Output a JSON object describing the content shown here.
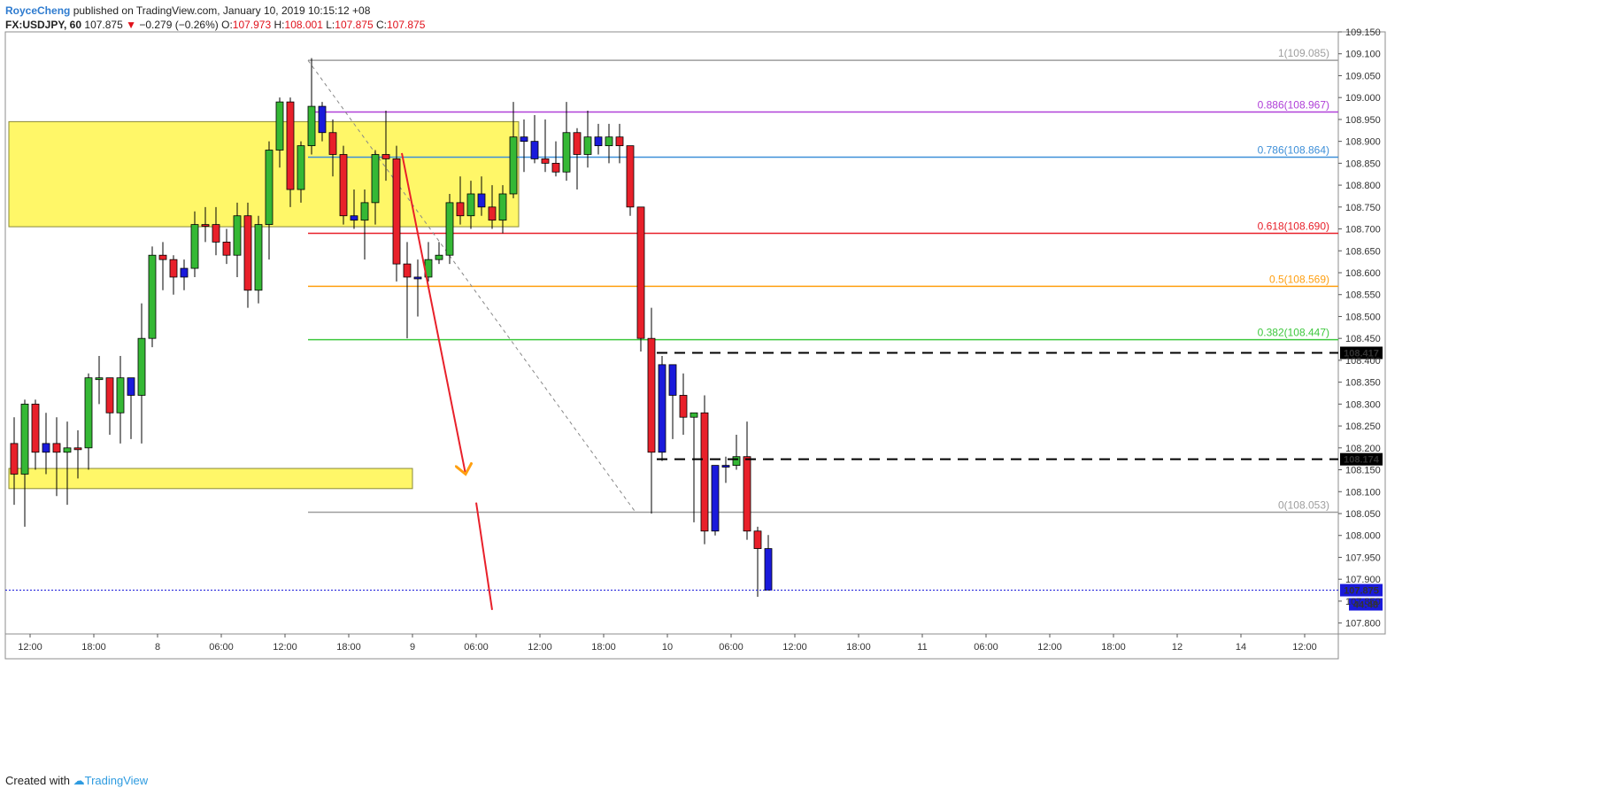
{
  "header": {
    "author": "RoyceCheng",
    "published_text": "published on TradingView.com, January 10, 2019 10:15:12 +08",
    "symbol": "FX:USDJPY, 60",
    "last_price": "107.875",
    "change": "−0.279 (−0.26%)",
    "o_label": "O:",
    "o_value": "107.973",
    "h_label": "H:",
    "h_value": "108.001",
    "l_label": "L:",
    "l_value": "107.875",
    "c_label": "C:",
    "c_value": "107.875"
  },
  "footer": {
    "created_with": "Created with",
    "brand": "TradingView"
  },
  "chart_data": {
    "type": "candlestick",
    "y_range": [
      107.775,
      109.15
    ],
    "y_ticks": [
      "109.150",
      "109.100",
      "109.050",
      "109.000",
      "108.950",
      "108.900",
      "108.850",
      "108.800",
      "108.750",
      "108.700",
      "108.650",
      "108.600",
      "108.550",
      "108.500",
      "108.450",
      "108.400",
      "108.350",
      "108.300",
      "108.250",
      "108.200",
      "108.150",
      "108.100",
      "108.050",
      "108.000",
      "107.950",
      "107.900",
      "107.850",
      "107.800"
    ],
    "x_ticks": [
      {
        "bar": 1.5,
        "label": "12:00"
      },
      {
        "bar": 7.5,
        "label": "18:00"
      },
      {
        "bar": 13.5,
        "label": "8"
      },
      {
        "bar": 19.5,
        "label": "06:00"
      },
      {
        "bar": 25.5,
        "label": "12:00"
      },
      {
        "bar": 31.5,
        "label": "18:00"
      },
      {
        "bar": 37.5,
        "label": "9"
      },
      {
        "bar": 43.5,
        "label": "06:00"
      },
      {
        "bar": 49.5,
        "label": "12:00"
      },
      {
        "bar": 55.5,
        "label": "18:00"
      },
      {
        "bar": 61.5,
        "label": "10"
      },
      {
        "bar": 67.5,
        "label": "06:00"
      },
      {
        "bar": 73.5,
        "label": "12:00"
      },
      {
        "bar": 79.5,
        "label": "18:00"
      },
      {
        "bar": 85.5,
        "label": "11"
      },
      {
        "bar": 91.5,
        "label": "06:00"
      },
      {
        "bar": 97.5,
        "label": "12:00"
      },
      {
        "bar": 103.5,
        "label": "18:00"
      },
      {
        "bar": 109.5,
        "label": "12"
      },
      {
        "bar": 115.5,
        "label": "14"
      },
      {
        "bar": 121.5,
        "label": "12:00"
      }
    ],
    "candles": [
      {
        "o": 108.14,
        "h": 108.27,
        "l": 108.07,
        "c": 108.21,
        "color": "red"
      },
      {
        "o": 108.14,
        "h": 108.31,
        "l": 108.02,
        "c": 108.3,
        "color": "green"
      },
      {
        "o": 108.3,
        "h": 108.31,
        "l": 108.15,
        "c": 108.19,
        "color": "red"
      },
      {
        "o": 108.19,
        "h": 108.28,
        "l": 108.14,
        "c": 108.21,
        "color": "blue"
      },
      {
        "o": 108.21,
        "h": 108.27,
        "l": 108.09,
        "c": 108.19,
        "color": "red"
      },
      {
        "o": 108.19,
        "h": 108.26,
        "l": 108.07,
        "c": 108.2,
        "color": "green"
      },
      {
        "o": 108.2,
        "h": 108.24,
        "l": 108.13,
        "c": 108.2,
        "color": "red"
      },
      {
        "o": 108.2,
        "h": 108.37,
        "l": 108.15,
        "c": 108.36,
        "color": "green"
      },
      {
        "o": 108.36,
        "h": 108.41,
        "l": 108.3,
        "c": 108.36,
        "color": "green"
      },
      {
        "o": 108.36,
        "h": 108.36,
        "l": 108.23,
        "c": 108.28,
        "color": "red"
      },
      {
        "o": 108.28,
        "h": 108.41,
        "l": 108.21,
        "c": 108.36,
        "color": "green"
      },
      {
        "o": 108.36,
        "h": 108.36,
        "l": 108.22,
        "c": 108.32,
        "color": "blue"
      },
      {
        "o": 108.32,
        "h": 108.53,
        "l": 108.21,
        "c": 108.45,
        "color": "green"
      },
      {
        "o": 108.45,
        "h": 108.66,
        "l": 108.43,
        "c": 108.64,
        "color": "green"
      },
      {
        "o": 108.64,
        "h": 108.67,
        "l": 108.56,
        "c": 108.63,
        "color": "red"
      },
      {
        "o": 108.63,
        "h": 108.64,
        "l": 108.55,
        "c": 108.59,
        "color": "red"
      },
      {
        "o": 108.59,
        "h": 108.63,
        "l": 108.56,
        "c": 108.61,
        "color": "blue"
      },
      {
        "o": 108.61,
        "h": 108.74,
        "l": 108.59,
        "c": 108.71,
        "color": "green"
      },
      {
        "o": 108.71,
        "h": 108.75,
        "l": 108.67,
        "c": 108.71,
        "color": "red"
      },
      {
        "o": 108.71,
        "h": 108.75,
        "l": 108.64,
        "c": 108.67,
        "color": "red"
      },
      {
        "o": 108.67,
        "h": 108.7,
        "l": 108.62,
        "c": 108.64,
        "color": "red"
      },
      {
        "o": 108.64,
        "h": 108.76,
        "l": 108.59,
        "c": 108.73,
        "color": "green"
      },
      {
        "o": 108.73,
        "h": 108.76,
        "l": 108.52,
        "c": 108.56,
        "color": "red"
      },
      {
        "o": 108.56,
        "h": 108.73,
        "l": 108.53,
        "c": 108.71,
        "color": "green"
      },
      {
        "o": 108.71,
        "h": 108.9,
        "l": 108.63,
        "c": 108.88,
        "color": "green"
      },
      {
        "o": 108.88,
        "h": 109.0,
        "l": 108.84,
        "c": 108.99,
        "color": "green"
      },
      {
        "o": 108.99,
        "h": 109.0,
        "l": 108.75,
        "c": 108.79,
        "color": "red"
      },
      {
        "o": 108.79,
        "h": 108.9,
        "l": 108.76,
        "c": 108.89,
        "color": "green"
      },
      {
        "o": 108.89,
        "h": 109.09,
        "l": 108.87,
        "c": 108.98,
        "color": "green"
      },
      {
        "o": 108.98,
        "h": 108.99,
        "l": 108.9,
        "c": 108.92,
        "color": "blue"
      },
      {
        "o": 108.92,
        "h": 108.95,
        "l": 108.82,
        "c": 108.87,
        "color": "red"
      },
      {
        "o": 108.87,
        "h": 108.89,
        "l": 108.71,
        "c": 108.73,
        "color": "red"
      },
      {
        "o": 108.73,
        "h": 108.79,
        "l": 108.7,
        "c": 108.72,
        "color": "blue"
      },
      {
        "o": 108.72,
        "h": 108.79,
        "l": 108.63,
        "c": 108.76,
        "color": "green"
      },
      {
        "o": 108.76,
        "h": 108.88,
        "l": 108.71,
        "c": 108.87,
        "color": "green"
      },
      {
        "o": 108.87,
        "h": 108.97,
        "l": 108.81,
        "c": 108.86,
        "color": "red"
      },
      {
        "o": 108.86,
        "h": 108.89,
        "l": 108.58,
        "c": 108.62,
        "color": "red"
      },
      {
        "o": 108.62,
        "h": 108.67,
        "l": 108.45,
        "c": 108.59,
        "color": "red"
      },
      {
        "o": 108.59,
        "h": 108.63,
        "l": 108.5,
        "c": 108.59,
        "color": "blue"
      },
      {
        "o": 108.59,
        "h": 108.67,
        "l": 108.58,
        "c": 108.63,
        "color": "green"
      },
      {
        "o": 108.63,
        "h": 108.67,
        "l": 108.62,
        "c": 108.64,
        "color": "green"
      },
      {
        "o": 108.64,
        "h": 108.78,
        "l": 108.62,
        "c": 108.76,
        "color": "green"
      },
      {
        "o": 108.76,
        "h": 108.82,
        "l": 108.71,
        "c": 108.73,
        "color": "red"
      },
      {
        "o": 108.73,
        "h": 108.81,
        "l": 108.7,
        "c": 108.78,
        "color": "green"
      },
      {
        "o": 108.78,
        "h": 108.82,
        "l": 108.73,
        "c": 108.75,
        "color": "blue"
      },
      {
        "o": 108.75,
        "h": 108.8,
        "l": 108.7,
        "c": 108.72,
        "color": "red"
      },
      {
        "o": 108.72,
        "h": 108.8,
        "l": 108.69,
        "c": 108.78,
        "color": "green"
      },
      {
        "o": 108.78,
        "h": 108.99,
        "l": 108.77,
        "c": 108.91,
        "color": "green"
      },
      {
        "o": 108.91,
        "h": 108.95,
        "l": 108.83,
        "c": 108.9,
        "color": "blue"
      },
      {
        "o": 108.9,
        "h": 108.96,
        "l": 108.85,
        "c": 108.86,
        "color": "blue"
      },
      {
        "o": 108.86,
        "h": 108.95,
        "l": 108.83,
        "c": 108.85,
        "color": "red"
      },
      {
        "o": 108.85,
        "h": 108.9,
        "l": 108.82,
        "c": 108.83,
        "color": "red"
      },
      {
        "o": 108.83,
        "h": 108.99,
        "l": 108.81,
        "c": 108.92,
        "color": "green"
      },
      {
        "o": 108.92,
        "h": 108.93,
        "l": 108.79,
        "c": 108.87,
        "color": "red"
      },
      {
        "o": 108.87,
        "h": 108.97,
        "l": 108.84,
        "c": 108.91,
        "color": "green"
      },
      {
        "o": 108.91,
        "h": 108.94,
        "l": 108.87,
        "c": 108.89,
        "color": "blue"
      },
      {
        "o": 108.89,
        "h": 108.94,
        "l": 108.85,
        "c": 108.91,
        "color": "green"
      },
      {
        "o": 108.91,
        "h": 108.94,
        "l": 108.85,
        "c": 108.89,
        "color": "red"
      },
      {
        "o": 108.89,
        "h": 108.89,
        "l": 108.73,
        "c": 108.75,
        "color": "red"
      },
      {
        "o": 108.75,
        "h": 108.75,
        "l": 108.42,
        "c": 108.45,
        "color": "red"
      },
      {
        "o": 108.45,
        "h": 108.52,
        "l": 108.05,
        "c": 108.19,
        "color": "red"
      },
      {
        "o": 108.19,
        "h": 108.41,
        "l": 108.17,
        "c": 108.39,
        "color": "blue"
      },
      {
        "o": 108.39,
        "h": 108.39,
        "l": 108.22,
        "c": 108.32,
        "color": "blue"
      },
      {
        "o": 108.32,
        "h": 108.37,
        "l": 108.23,
        "c": 108.27,
        "color": "red"
      },
      {
        "o": 108.27,
        "h": 108.28,
        "l": 108.03,
        "c": 108.28,
        "color": "green"
      },
      {
        "o": 108.28,
        "h": 108.32,
        "l": 107.98,
        "c": 108.01,
        "color": "red"
      },
      {
        "o": 108.01,
        "h": 108.16,
        "l": 108.0,
        "c": 108.16,
        "color": "blue"
      },
      {
        "o": 108.16,
        "h": 108.18,
        "l": 108.12,
        "c": 108.16,
        "color": "blue"
      },
      {
        "o": 108.16,
        "h": 108.23,
        "l": 108.15,
        "c": 108.18,
        "color": "green"
      },
      {
        "o": 108.18,
        "h": 108.26,
        "l": 107.99,
        "c": 108.01,
        "color": "red"
      },
      {
        "o": 108.01,
        "h": 108.02,
        "l": 107.86,
        "c": 107.97,
        "color": "red"
      },
      {
        "o": 107.97,
        "h": 108.001,
        "l": 107.875,
        "c": 107.875,
        "color": "blue"
      }
    ],
    "fib_levels": [
      {
        "ratio": "1",
        "price": 109.085,
        "label": "1(109.085)",
        "color": "#9e9e9e"
      },
      {
        "ratio": "0.886",
        "price": 108.967,
        "label": "0.886(108.967)",
        "color": "#b040d8"
      },
      {
        "ratio": "0.786",
        "price": 108.864,
        "label": "0.786(108.864)",
        "color": "#3d8fd8"
      },
      {
        "ratio": "0.618",
        "price": 108.69,
        "label": "0.618(108.690)",
        "color": "#e8202a"
      },
      {
        "ratio": "0.5",
        "price": 108.569,
        "label": "0.5(108.569)",
        "color": "#ff9f10"
      },
      {
        "ratio": "0.382",
        "price": 108.447,
        "label": "0.382(108.447)",
        "color": "#3ec83e"
      },
      {
        "ratio": "0",
        "price": 108.053,
        "label": "0(108.053)",
        "color": "#9e9e9e"
      }
    ],
    "dashed_levels": [
      {
        "price": 108.417,
        "label": "108.417"
      },
      {
        "price": 108.174,
        "label": "108.174"
      }
    ],
    "current_price": {
      "price": 107.875,
      "label": "107.875",
      "countdown": "44:48"
    },
    "zones": [
      {
        "bar_start": -0.5,
        "bar_end": 47.5,
        "price_top": 108.945,
        "price_bottom": 108.705
      },
      {
        "bar_start": -0.5,
        "bar_end": 37.5,
        "price_top": 108.153,
        "price_bottom": 108.107
      }
    ],
    "fib_anchor": {
      "bar_start": 28,
      "bar_end": 58.5
    },
    "arrows": [
      {
        "from_bar": 36.5,
        "from_price": 108.873,
        "to_bar": 42.5,
        "to_price": 108.14,
        "color": "#e8202a"
      },
      {
        "from_bar": 43.5,
        "from_price": 108.075,
        "to_bar": 45,
        "to_price": 107.83,
        "color": "#e8202a"
      }
    ],
    "colors": {
      "up": "#35b835",
      "down": "#e8202a",
      "neutral": "#1a1adb",
      "zone": "#fff64d",
      "zone_border": "#8a8a3a"
    }
  }
}
